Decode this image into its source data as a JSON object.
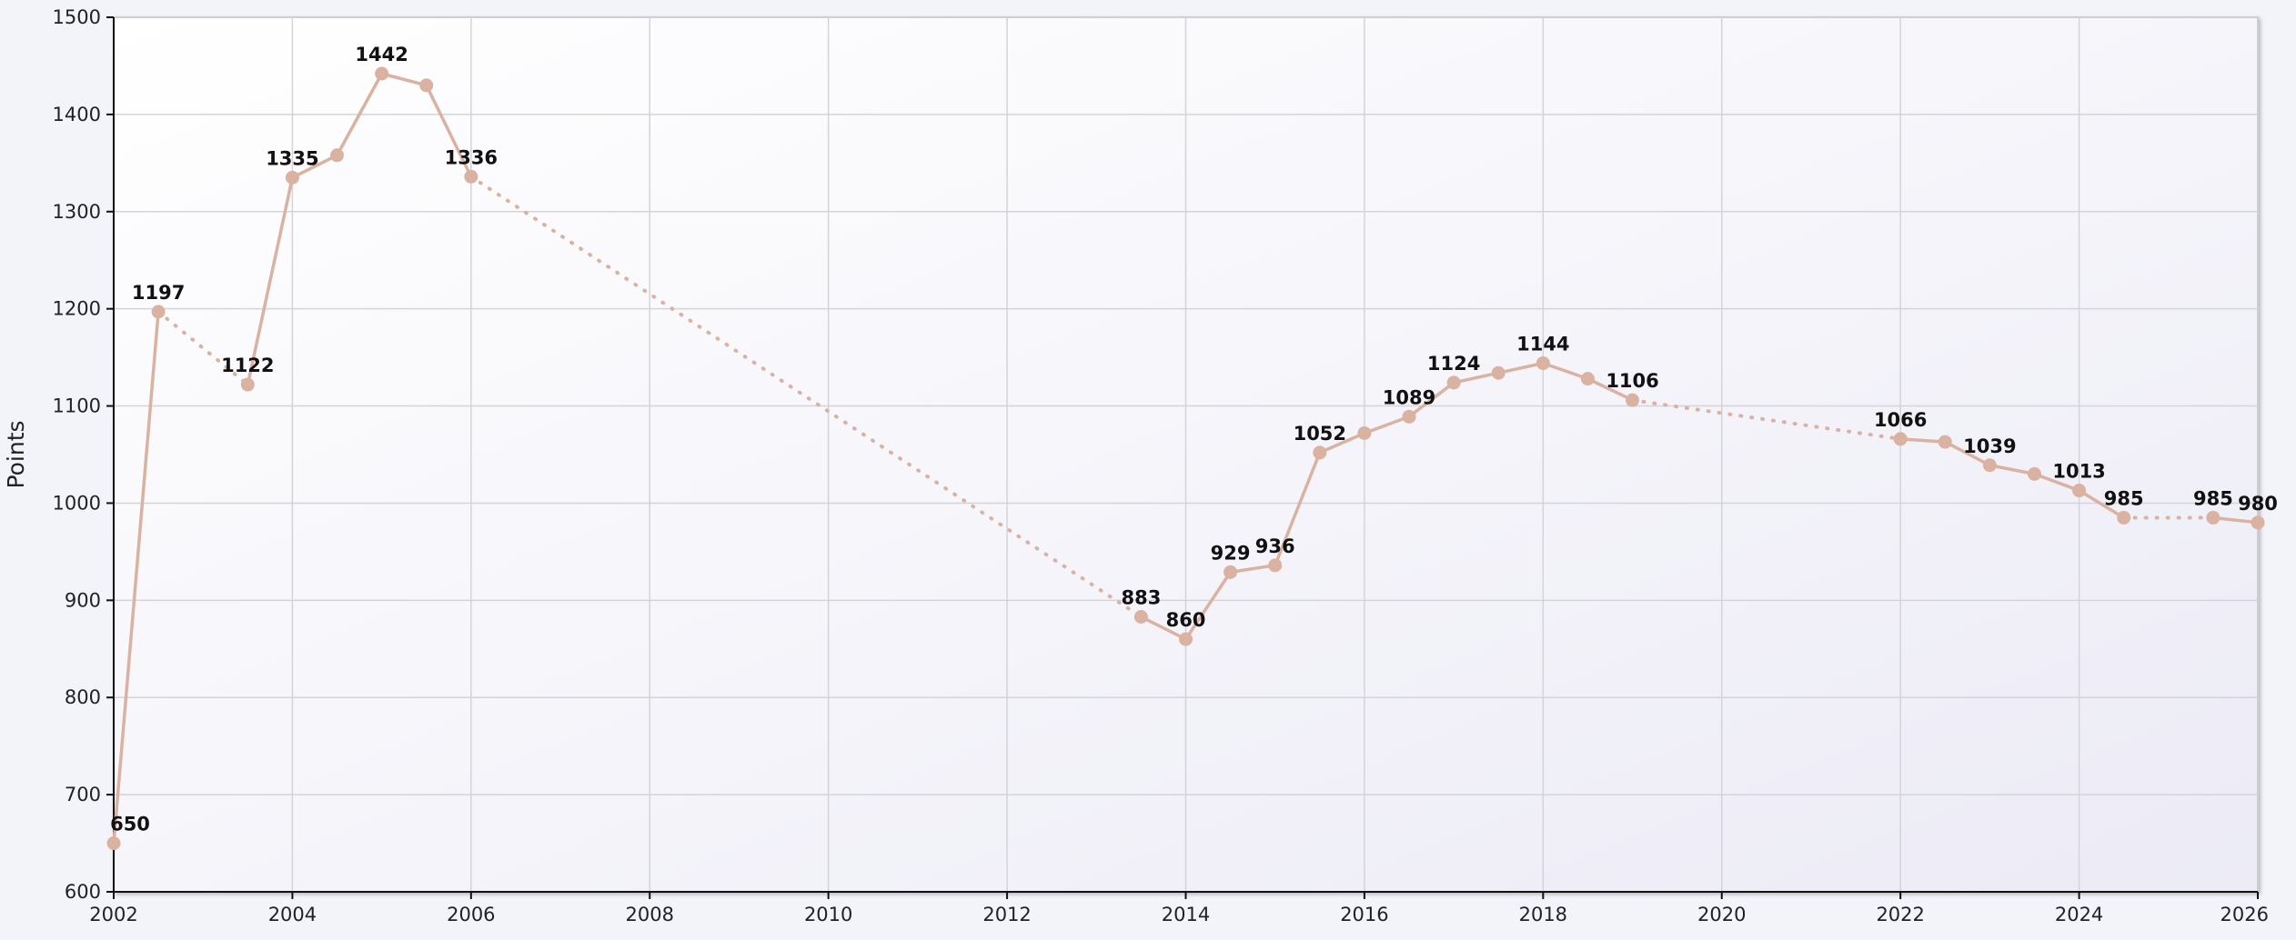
{
  "chart_data": {
    "type": "line",
    "title": "",
    "xlabel": "",
    "ylabel": "Points",
    "xlim": [
      2002,
      2026
    ],
    "ylim": [
      600,
      1500
    ],
    "x_ticks": [
      "2002",
      "2004",
      "2006",
      "2008",
      "2010",
      "2012",
      "2014",
      "2016",
      "2018",
      "2020",
      "2022",
      "2024",
      "2026"
    ],
    "y_ticks": [
      "600",
      "700",
      "800",
      "900",
      "1000",
      "1100",
      "1200",
      "1300",
      "1400",
      "1500"
    ],
    "grid": true,
    "series": [
      {
        "color": "#d9b2a2",
        "points": [
          {
            "x": 2002.0,
            "y": 650,
            "label": "650"
          },
          {
            "x": 2002.5,
            "y": 1197,
            "label": "1197"
          },
          {
            "x": 2003.5,
            "y": 1122,
            "label": "1122"
          },
          {
            "x": 2004.0,
            "y": 1335,
            "label": "1335"
          },
          {
            "x": 2004.5,
            "y": 1358,
            "label": ""
          },
          {
            "x": 2005.0,
            "y": 1442,
            "label": "1442"
          },
          {
            "x": 2005.5,
            "y": 1430,
            "label": ""
          },
          {
            "x": 2006.0,
            "y": 1336,
            "label": "1336"
          },
          {
            "x": 2013.5,
            "y": 883,
            "label": "883"
          },
          {
            "x": 2014.0,
            "y": 860,
            "label": "860"
          },
          {
            "x": 2014.5,
            "y": 929,
            "label": "929"
          },
          {
            "x": 2015.0,
            "y": 936,
            "label": "936"
          },
          {
            "x": 2015.5,
            "y": 1052,
            "label": "1052"
          },
          {
            "x": 2016.0,
            "y": 1072,
            "label": ""
          },
          {
            "x": 2016.5,
            "y": 1089,
            "label": "1089"
          },
          {
            "x": 2017.0,
            "y": 1124,
            "label": "1124"
          },
          {
            "x": 2017.5,
            "y": 1134,
            "label": ""
          },
          {
            "x": 2018.0,
            "y": 1144,
            "label": "1144"
          },
          {
            "x": 2018.5,
            "y": 1128,
            "label": ""
          },
          {
            "x": 2019.0,
            "y": 1106,
            "label": "1106"
          },
          {
            "x": 2022.0,
            "y": 1066,
            "label": "1066"
          },
          {
            "x": 2022.5,
            "y": 1063,
            "label": ""
          },
          {
            "x": 2023.0,
            "y": 1039,
            "label": "1039"
          },
          {
            "x": 2023.5,
            "y": 1030,
            "label": ""
          },
          {
            "x": 2024.0,
            "y": 1013,
            "label": "1013"
          },
          {
            "x": 2024.5,
            "y": 985,
            "label": "985"
          },
          {
            "x": 2025.5,
            "y": 985,
            "label": "985"
          },
          {
            "x": 2026.0,
            "y": 980,
            "label": "980"
          }
        ],
        "segments": [
          {
            "from": 2002.0,
            "to": 2002.5,
            "style": "solid"
          },
          {
            "from": 2002.5,
            "to": 2003.5,
            "style": "dotted"
          },
          {
            "from": 2003.5,
            "to": 2006.0,
            "style": "solid"
          },
          {
            "from": 2006.0,
            "to": 2013.5,
            "style": "dotted"
          },
          {
            "from": 2013.5,
            "to": 2019.0,
            "style": "solid"
          },
          {
            "from": 2019.0,
            "to": 2022.0,
            "style": "dotted"
          },
          {
            "from": 2022.0,
            "to": 2024.5,
            "style": "solid"
          },
          {
            "from": 2024.5,
            "to": 2025.5,
            "style": "dotted"
          },
          {
            "from": 2025.5,
            "to": 2026.0,
            "style": "solid"
          }
        ]
      }
    ],
    "colors": {
      "plot_bg_top": "#ffffff",
      "plot_bg_bottom": "#ecebf6",
      "grid": "#d4d4d8",
      "axis": "#111111"
    }
  }
}
